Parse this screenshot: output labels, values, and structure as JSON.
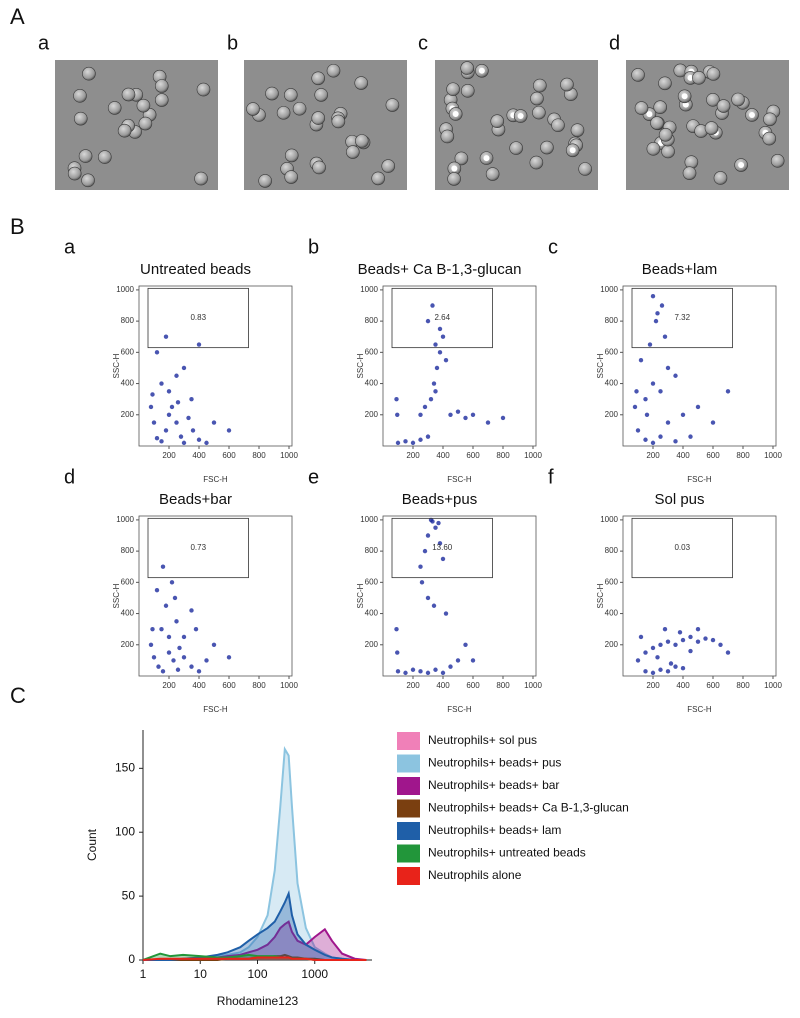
{
  "figure_labels": {
    "A": "A",
    "B": "B",
    "C": "C"
  },
  "images": [
    {
      "label": "a"
    },
    {
      "label": "b"
    },
    {
      "label": "c"
    },
    {
      "label": "d"
    }
  ],
  "chart_data": [
    {
      "type": "scatter",
      "panel": "a",
      "title": "Untreated beads",
      "xlabel": "FSC-H",
      "ylabel": "SSC-H",
      "xlim": [
        0,
        1020
      ],
      "ylim": [
        0,
        1025
      ],
      "xticks": [
        200,
        400,
        600,
        800,
        1000
      ],
      "yticks": [
        200,
        400,
        600,
        800,
        1000
      ],
      "gate": [
        60,
        630,
        730,
        1010
      ],
      "gate_label": "0.83",
      "color": "#1c2b9e",
      "x": [
        80,
        100,
        120,
        150,
        180,
        200,
        220,
        250,
        280,
        300,
        330,
        360,
        400,
        450,
        150,
        200,
        250,
        300,
        120,
        180,
        350,
        500,
        600,
        400,
        90,
        260
      ],
      "y": [
        250,
        150,
        50,
        30,
        100,
        200,
        250,
        150,
        60,
        20,
        180,
        100,
        40,
        20,
        400,
        350,
        450,
        500,
        600,
        700,
        300,
        150,
        100,
        650,
        330,
        280
      ]
    },
    {
      "type": "scatter",
      "panel": "b",
      "title": "Beads+ Ca B-1,3-glucan",
      "xlabel": "FSC-H",
      "ylabel": "SSC-H",
      "xlim": [
        0,
        1020
      ],
      "ylim": [
        0,
        1025
      ],
      "xticks": [
        200,
        400,
        600,
        800,
        1000
      ],
      "yticks": [
        200,
        400,
        600,
        800,
        1000
      ],
      "gate": [
        60,
        630,
        730,
        1010
      ],
      "gate_label": "2.64",
      "color": "#1c2b9e",
      "x": [
        100,
        150,
        200,
        250,
        300,
        320,
        340,
        360,
        380,
        400,
        450,
        500,
        550,
        600,
        300,
        330,
        350,
        380,
        420,
        280,
        90,
        95,
        700,
        800,
        250,
        350
      ],
      "y": [
        20,
        30,
        20,
        40,
        60,
        300,
        400,
        500,
        600,
        700,
        200,
        220,
        180,
        200,
        800,
        900,
        650,
        750,
        550,
        250,
        300,
        200,
        150,
        180,
        200,
        350
      ]
    },
    {
      "type": "scatter",
      "panel": "c",
      "title": "Beads+lam",
      "xlabel": "FSC-H",
      "ylabel": "SSC-H",
      "xlim": [
        0,
        1020
      ],
      "ylim": [
        0,
        1025
      ],
      "xticks": [
        200,
        400,
        600,
        800,
        1000
      ],
      "yticks": [
        200,
        400,
        600,
        800,
        1000
      ],
      "gate": [
        60,
        630,
        730,
        1010
      ],
      "gate_label": "7.32",
      "color": "#1c2b9e",
      "x": [
        80,
        100,
        150,
        200,
        250,
        300,
        350,
        400,
        450,
        150,
        200,
        250,
        300,
        180,
        220,
        260,
        120,
        350,
        500,
        600,
        90,
        280,
        200,
        230,
        700,
        160
      ],
      "y": [
        250,
        100,
        40,
        20,
        60,
        150,
        30,
        200,
        60,
        300,
        400,
        350,
        500,
        650,
        800,
        900,
        550,
        450,
        250,
        150,
        350,
        700,
        960,
        850,
        350,
        200
      ]
    },
    {
      "type": "scatter",
      "panel": "d",
      "title": "Beads+bar",
      "xlabel": "FSC-H",
      "ylabel": "SSC-H",
      "xlim": [
        0,
        1020
      ],
      "ylim": [
        0,
        1025
      ],
      "xticks": [
        200,
        400,
        600,
        800,
        1000
      ],
      "yticks": [
        200,
        400,
        600,
        800,
        1000
      ],
      "gate": [
        60,
        630,
        730,
        1010
      ],
      "gate_label": "0.73",
      "color": "#1c2b9e",
      "x": [
        80,
        100,
        130,
        160,
        200,
        230,
        260,
        300,
        350,
        400,
        450,
        150,
        200,
        250,
        180,
        120,
        300,
        500,
        600,
        220,
        90,
        270,
        350,
        160,
        380,
        240
      ],
      "y": [
        200,
        120,
        60,
        30,
        150,
        100,
        40,
        120,
        60,
        30,
        100,
        300,
        250,
        350,
        450,
        550,
        250,
        200,
        120,
        600,
        300,
        180,
        420,
        700,
        300,
        500
      ]
    },
    {
      "type": "scatter",
      "panel": "e",
      "title": "Beads+pus",
      "xlabel": "FSC-H",
      "ylabel": "SSC-H",
      "xlim": [
        0,
        1020
      ],
      "ylim": [
        0,
        1025
      ],
      "xticks": [
        200,
        400,
        600,
        800,
        1000
      ],
      "yticks": [
        200,
        400,
        600,
        800,
        1000
      ],
      "gate": [
        60,
        630,
        730,
        1010
      ],
      "gate_label": "13.60",
      "color": "#1c2b9e",
      "x": [
        100,
        150,
        200,
        250,
        300,
        350,
        400,
        450,
        500,
        250,
        280,
        300,
        320,
        350,
        380,
        400,
        260,
        300,
        340,
        90,
        95,
        420,
        550,
        600,
        330,
        370
      ],
      "y": [
        30,
        20,
        40,
        30,
        20,
        40,
        20,
        60,
        100,
        700,
        800,
        900,
        1000,
        950,
        850,
        750,
        600,
        500,
        450,
        300,
        150,
        400,
        200,
        100,
        990,
        980
      ]
    },
    {
      "type": "scatter",
      "panel": "f",
      "title": "Sol pus",
      "xlabel": "FSC-H",
      "ylabel": "SSC-H",
      "xlim": [
        0,
        1020
      ],
      "ylim": [
        0,
        1025
      ],
      "xticks": [
        200,
        400,
        600,
        800,
        1000
      ],
      "yticks": [
        200,
        400,
        600,
        800,
        1000
      ],
      "gate": [
        60,
        630,
        730,
        1010
      ],
      "gate_label": "0.03",
      "color": "#1c2b9e",
      "x": [
        100,
        150,
        200,
        250,
        300,
        350,
        400,
        450,
        500,
        550,
        600,
        150,
        200,
        250,
        300,
        350,
        400,
        650,
        700,
        500,
        120,
        280,
        450,
        380,
        230,
        320
      ],
      "y": [
        100,
        150,
        180,
        200,
        220,
        200,
        230,
        250,
        220,
        240,
        230,
        30,
        20,
        40,
        30,
        60,
        50,
        200,
        150,
        300,
        250,
        300,
        160,
        280,
        120,
        80
      ]
    },
    {
      "type": "line",
      "xlabel": "Rhodamine123",
      "ylabel": "Count",
      "log_x": true,
      "xlim": [
        1,
        10000
      ],
      "ylim": [
        0,
        180
      ],
      "xticks": [
        1,
        10,
        100,
        1000
      ],
      "yticks": [
        0,
        50,
        100,
        150
      ],
      "x": [
        1,
        2,
        3,
        5,
        10,
        20,
        30,
        50,
        70,
        100,
        150,
        200,
        250,
        300,
        350,
        400,
        500,
        700,
        1000,
        1500,
        2000,
        3000,
        5000,
        8000
      ],
      "series": [
        {
          "name": "Neutrophils+ sol pus",
          "color": "#f080b8",
          "values": [
            0,
            0,
            0,
            0,
            0,
            1,
            1,
            1,
            1,
            1,
            2,
            2,
            2,
            2,
            2,
            1,
            1,
            1,
            1,
            0,
            0,
            0,
            0,
            0
          ]
        },
        {
          "name": "Neutrophils+ beads+ pus",
          "color": "#8cc4e0",
          "values": [
            0,
            0,
            0,
            1,
            2,
            3,
            4,
            6,
            10,
            18,
            35,
            70,
            120,
            165,
            160,
            120,
            60,
            25,
            10,
            5,
            2,
            1,
            0,
            0
          ]
        },
        {
          "name": "Neutrophils+ beads+ bar",
          "color": "#a0168c",
          "values": [
            0,
            0,
            0,
            0,
            1,
            2,
            3,
            4,
            6,
            8,
            12,
            18,
            25,
            28,
            30,
            22,
            15,
            12,
            18,
            24,
            15,
            5,
            1,
            0
          ]
        },
        {
          "name": "Neutrophils+ beads+ Ca B-1,3-glucan",
          "color": "#7a3f10",
          "values": [
            0,
            0,
            0,
            0,
            0,
            0,
            1,
            1,
            1,
            2,
            2,
            3,
            3,
            4,
            3,
            2,
            2,
            1,
            1,
            0,
            0,
            0,
            0,
            0
          ]
        },
        {
          "name": "Neutrophils+ beads+ lam",
          "color": "#1f5fa8",
          "values": [
            0,
            0,
            0,
            1,
            2,
            4,
            6,
            10,
            15,
            20,
            25,
            30,
            38,
            45,
            52,
            35,
            20,
            12,
            8,
            4,
            2,
            1,
            0,
            0
          ]
        },
        {
          "name": "Neutrophils+ untreated beads",
          "color": "#22963a",
          "values": [
            0,
            5,
            3,
            4,
            3,
            2,
            2,
            3,
            4,
            3,
            3,
            3,
            2,
            2,
            2,
            1,
            1,
            1,
            0,
            0,
            0,
            0,
            0,
            0
          ]
        },
        {
          "name": "Neutrophils alone",
          "color": "#e8231a",
          "values": [
            0,
            1,
            1,
            1,
            1,
            1,
            1,
            1,
            1,
            2,
            2,
            2,
            2,
            2,
            2,
            1,
            1,
            1,
            0,
            0,
            0,
            0,
            0,
            0
          ]
        }
      ]
    }
  ]
}
